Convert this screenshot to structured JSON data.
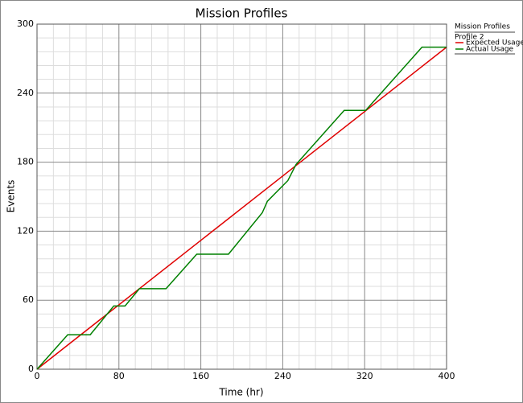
{
  "chart_data": {
    "type": "line",
    "title": "Mission Profiles",
    "xlabel": "Time (hr)",
    "ylabel": "Events",
    "legend_title": "Mission Profiles",
    "legend_subtitle": "Profile 2",
    "xlim": [
      0,
      400
    ],
    "xticks": [
      0,
      80,
      160,
      240,
      320,
      400
    ],
    "ylim": [
      0,
      300
    ],
    "yticks": [
      0,
      60,
      120,
      180,
      240,
      300
    ],
    "grid": true,
    "minor_divisions": 5,
    "legend": "right",
    "series": [
      {
        "name": "Expected Usage",
        "color": "#e00000",
        "x": [
          0,
          400
        ],
        "values": [
          0,
          280
        ]
      },
      {
        "name": "Actual Usage",
        "color": "#008000",
        "x": [
          0,
          30,
          52,
          75,
          86,
          100,
          126,
          156,
          187,
          220,
          225,
          245,
          253,
          300,
          321,
          376,
          400
        ],
        "values": [
          0,
          30,
          30,
          55,
          55,
          70,
          70,
          100,
          100,
          136,
          146,
          164,
          178,
          225,
          225,
          280,
          280
        ]
      }
    ]
  }
}
